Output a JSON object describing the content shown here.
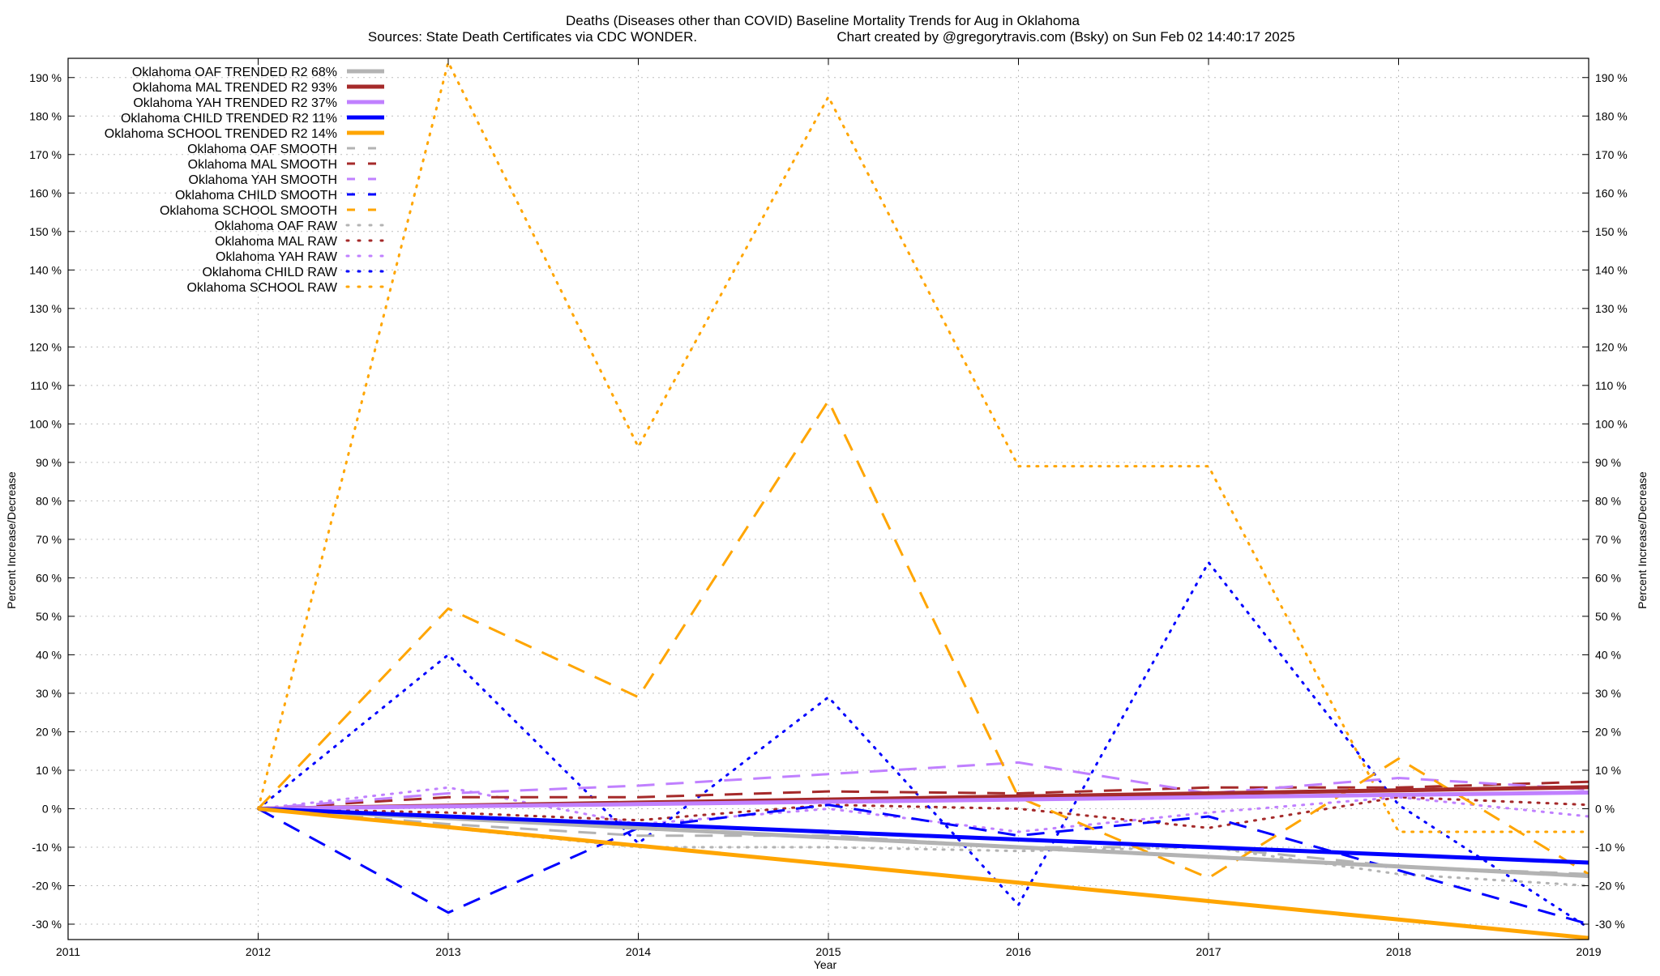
{
  "chart_data": {
    "type": "line",
    "title": "Deaths (Diseases other than COVID)  Baseline Mortality Trends for Aug in Oklahoma",
    "subtitle_left": "Sources: State Death Certificates via CDC WONDER.",
    "subtitle_right": "Chart created by @gregorytravis.com (Bsky) on Sun Feb 02 14:40:17 2025",
    "xlabel": "Year",
    "ylabel": "Percent Increase/Decrease",
    "xlim": [
      2011,
      2019
    ],
    "ylim": [
      -34,
      195
    ],
    "x_ticks": [
      2011,
      2012,
      2013,
      2014,
      2015,
      2016,
      2017,
      2018,
      2019
    ],
    "y_ticks": [
      -30,
      -20,
      -10,
      0,
      10,
      20,
      30,
      40,
      50,
      60,
      70,
      80,
      90,
      100,
      110,
      120,
      130,
      140,
      150,
      160,
      170,
      180,
      190
    ],
    "y_tick_suffix": " %",
    "grid": true,
    "legend_position": "top-left",
    "x": [
      2012,
      2013,
      2014,
      2015,
      2016,
      2017,
      2018,
      2019
    ],
    "series": [
      {
        "name": "Oklahoma OAF TRENDED R2  68%",
        "style": "trend",
        "color": "#b3b3b3",
        "values": [
          0,
          -2.5,
          -5,
          -7.5,
          -10,
          -12.5,
          -15,
          -17.5
        ]
      },
      {
        "name": "Oklahoma MAL TRENDED R2  93%",
        "style": "trend",
        "color": "#a52a2a",
        "values": [
          0,
          0.8,
          1.6,
          2.4,
          3.2,
          4.0,
          4.8,
          5.6
        ]
      },
      {
        "name": "Oklahoma YAH TRENDED R2  37%",
        "style": "trend",
        "color": "#c080ff",
        "values": [
          0,
          0.6,
          1.2,
          1.8,
          2.4,
          3.0,
          3.6,
          4.2
        ]
      },
      {
        "name": "Oklahoma CHILD TRENDED R2  11%",
        "style": "trend",
        "color": "#0000ff",
        "values": [
          0,
          -2,
          -4,
          -6,
          -8,
          -10,
          -12,
          -14
        ]
      },
      {
        "name": "Oklahoma SCHOOL TRENDED R2  14%",
        "style": "trend",
        "color": "#ffa500",
        "values": [
          0,
          -4.8,
          -9.6,
          -14.4,
          -19.2,
          -24,
          -28.8,
          -33.6
        ]
      },
      {
        "name": "Oklahoma OAF SMOOTH",
        "style": "smooth",
        "color": "#b3b3b3",
        "values": [
          0,
          -4,
          -7,
          -7,
          -10,
          -10,
          -15,
          -17
        ]
      },
      {
        "name": "Oklahoma MAL SMOOTH",
        "style": "smooth",
        "color": "#a52a2a",
        "values": [
          0,
          3,
          3,
          4.5,
          4,
          5.5,
          5.5,
          7
        ]
      },
      {
        "name": "Oklahoma YAH SMOOTH",
        "style": "smooth",
        "color": "#c080ff",
        "values": [
          0,
          4,
          6,
          9,
          12,
          4,
          8,
          5
        ]
      },
      {
        "name": "Oklahoma CHILD SMOOTH",
        "style": "smooth",
        "color": "#0000ff",
        "values": [
          0,
          -27,
          -5,
          1,
          -7,
          -2,
          -16,
          -30
        ]
      },
      {
        "name": "Oklahoma SCHOOL SMOOTH",
        "style": "smooth",
        "color": "#ffa500",
        "values": [
          0,
          52,
          29,
          106,
          3,
          -18,
          13,
          -17
        ]
      },
      {
        "name": "Oklahoma OAF RAW",
        "style": "raw",
        "color": "#b3b3b3",
        "values": [
          0,
          -5,
          -10,
          -10,
          -11,
          -10,
          -17,
          -20
        ]
      },
      {
        "name": "Oklahoma MAL RAW",
        "style": "raw",
        "color": "#a52a2a",
        "values": [
          0,
          -1,
          -3,
          1,
          0,
          -5,
          3,
          1
        ]
      },
      {
        "name": "Oklahoma YAH RAW",
        "style": "raw",
        "color": "#c080ff",
        "values": [
          0,
          5.5,
          -4,
          0,
          -6,
          -1,
          3,
          -2
        ]
      },
      {
        "name": "Oklahoma CHILD RAW",
        "style": "raw",
        "color": "#0000ff",
        "values": [
          0,
          40,
          -9,
          29,
          -25,
          64,
          1,
          -31
        ]
      },
      {
        "name": "Oklahoma SCHOOL RAW",
        "style": "raw",
        "color": "#ffa500",
        "values": [
          0,
          194,
          94,
          185,
          89,
          89,
          -6,
          -6
        ]
      }
    ]
  }
}
